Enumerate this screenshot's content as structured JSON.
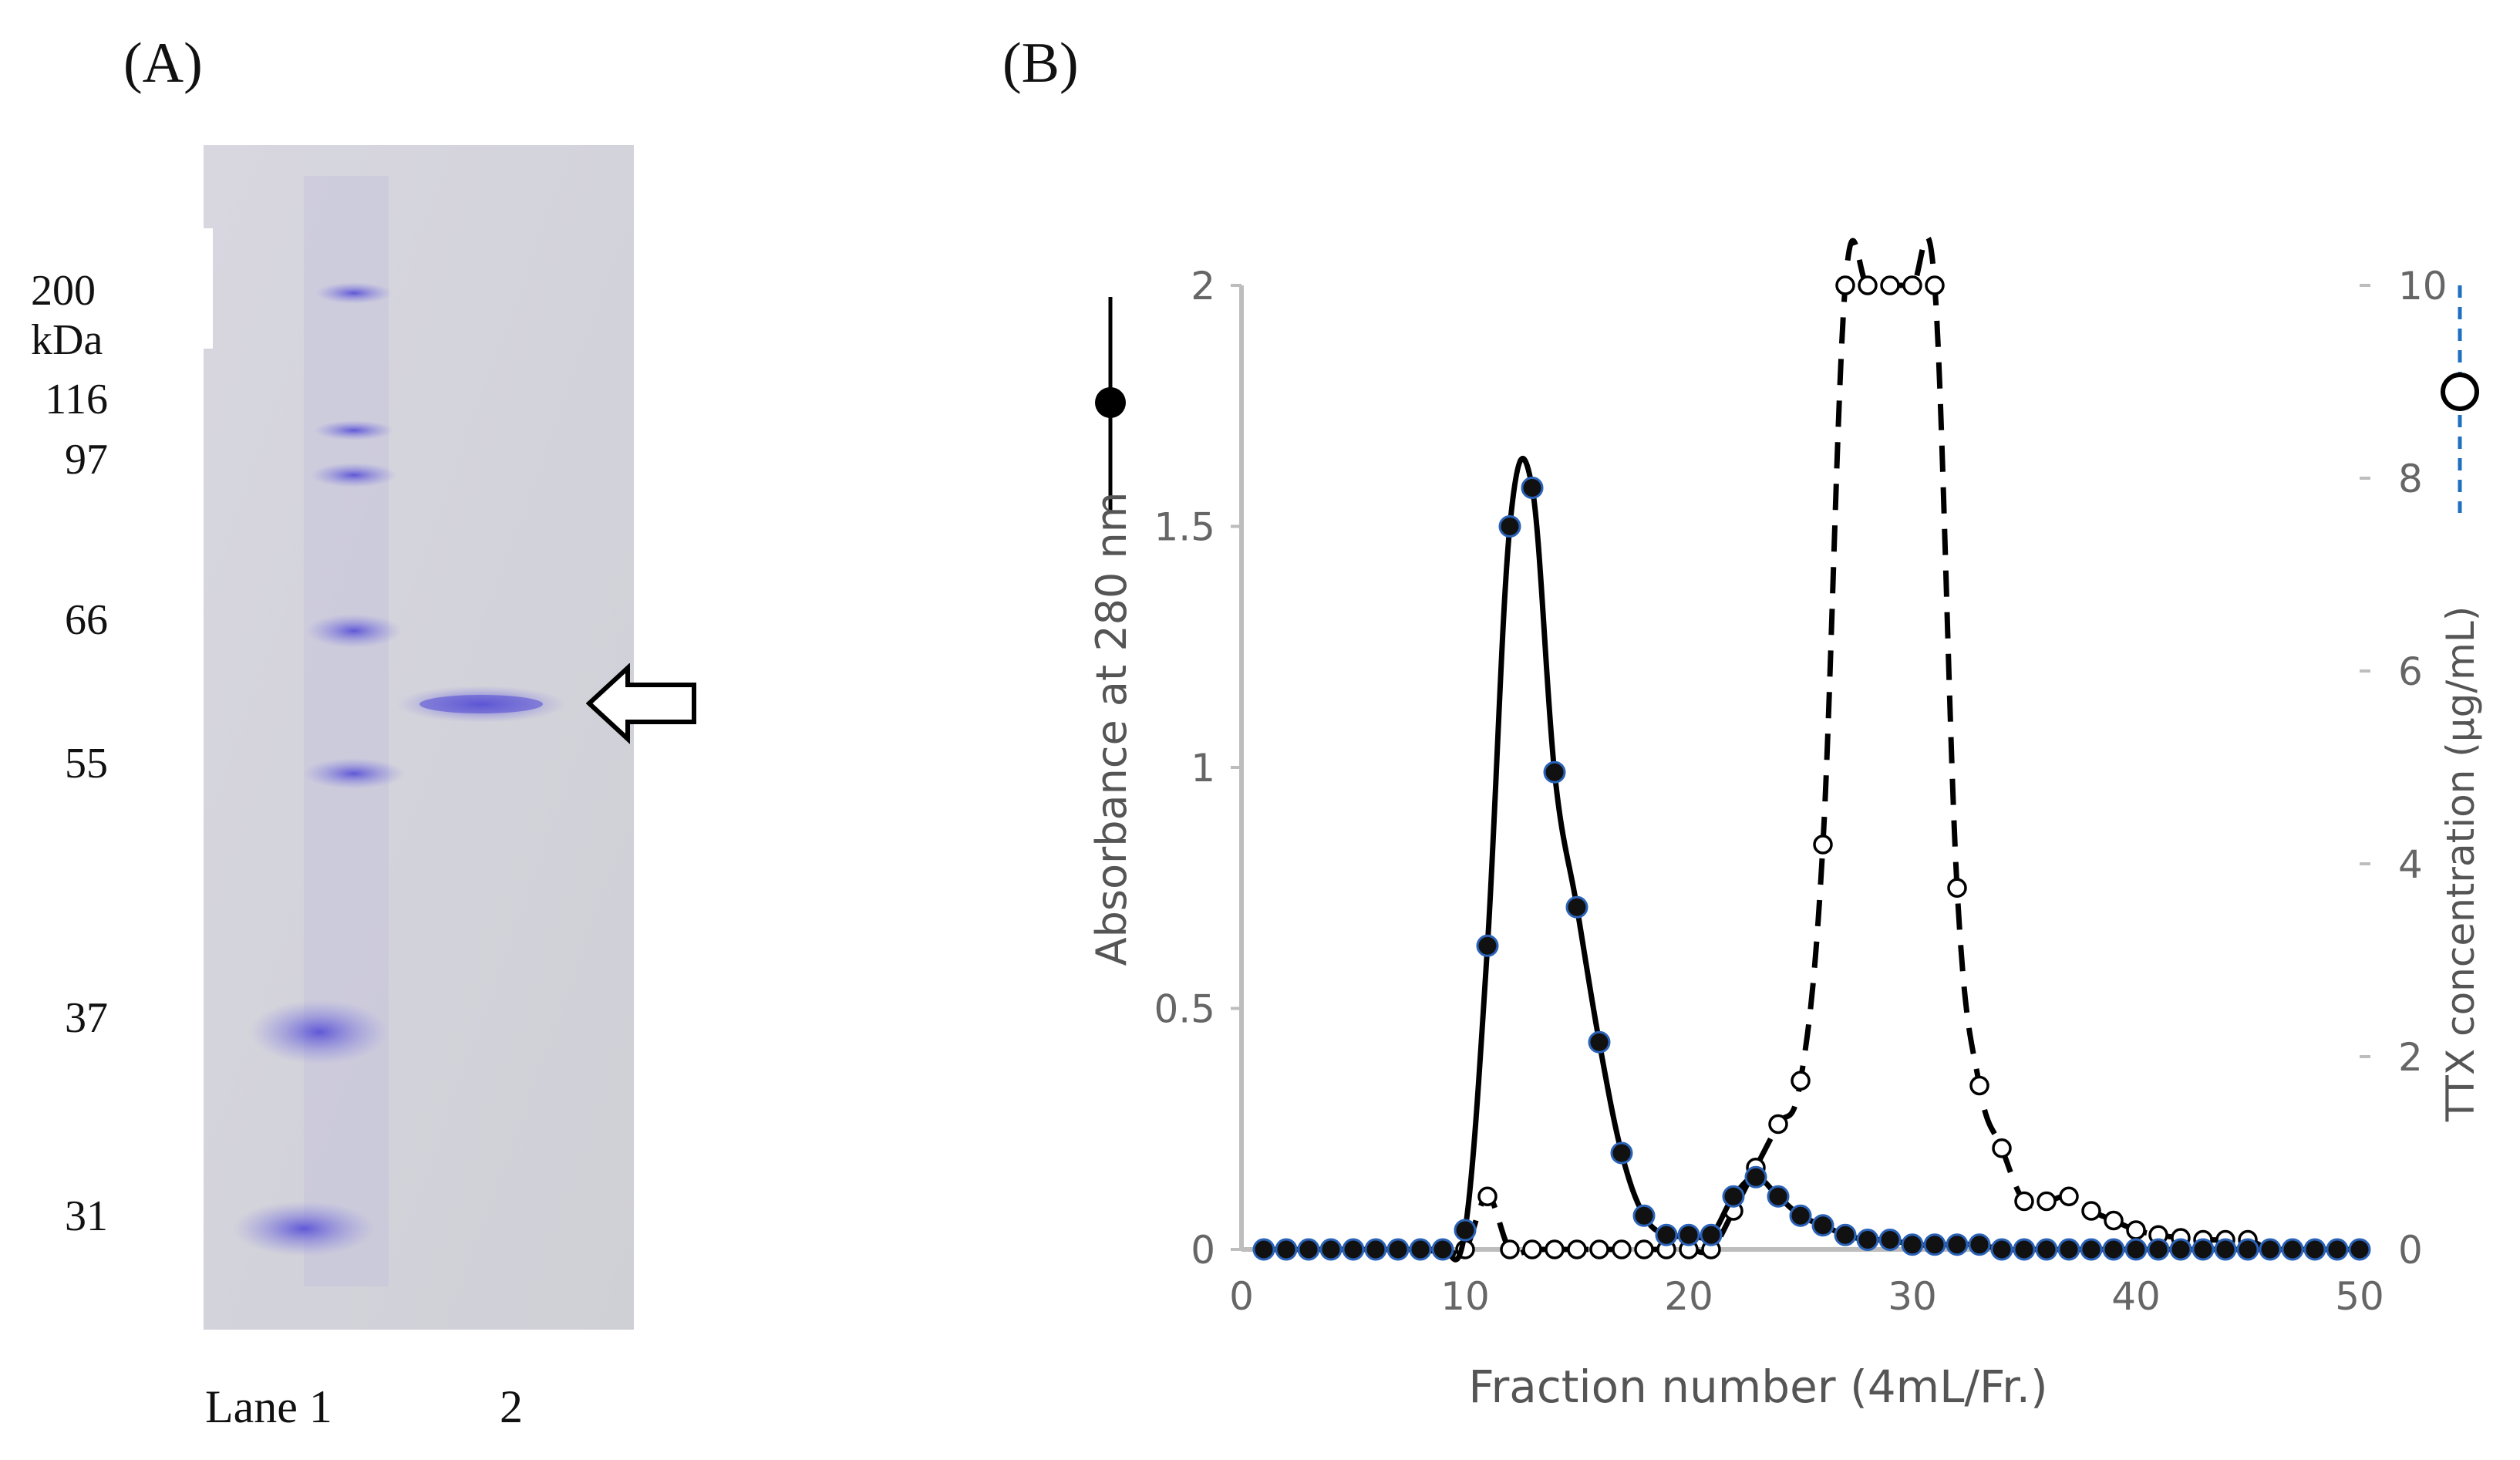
{
  "panels": {
    "a_label": "(A)",
    "b_label": "(B)"
  },
  "gel": {
    "mw_markers": [
      {
        "label": "200 kDa",
        "kda": 200
      },
      {
        "label": "116",
        "kda": 116
      },
      {
        "label": "97",
        "kda": 97
      },
      {
        "label": "66",
        "kda": 66
      },
      {
        "label": "55",
        "kda": 55
      },
      {
        "label": "37",
        "kda": 37
      },
      {
        "label": "31",
        "kda": 31
      }
    ],
    "lane_labels": [
      "Lane 1",
      "2"
    ],
    "sample_band_position": "between 66 and 55 kDa markers (arrow)",
    "colors": {
      "background": "#d3d2dd",
      "band": "#6a62d8"
    }
  },
  "chart_data": {
    "type": "line",
    "xlabel": "Fraction number (4mL/Fr.)",
    "ylabel": "Absorbance at 280 nm",
    "y2label": "TTX concentration (μg/mL)",
    "xlim": [
      0,
      50
    ],
    "ylim": [
      0,
      2
    ],
    "y2lim": [
      0,
      10
    ],
    "x_ticks": [
      0,
      10,
      20,
      30,
      40,
      50
    ],
    "y_ticks": [
      0,
      0.5,
      1,
      1.5,
      2
    ],
    "y2_ticks": [
      0,
      2,
      4,
      6,
      8,
      10
    ],
    "legend": {
      "absorbance": {
        "marker": "filled circle",
        "line": "solid",
        "color": "#000000"
      },
      "ttx": {
        "marker": "open circle",
        "line": "dashed",
        "color": "#1f6fc1"
      }
    },
    "series": [
      {
        "axis": "left",
        "style": "solid-filled",
        "x": [
          1,
          2,
          3,
          4,
          5,
          6,
          7,
          8,
          9,
          10,
          11,
          12,
          13,
          14,
          15,
          16,
          17,
          18,
          19,
          20,
          21,
          22,
          23,
          24,
          25,
          26,
          27,
          28,
          29,
          30,
          31,
          32,
          33,
          34,
          35,
          36,
          37,
          38,
          39,
          40,
          41,
          42,
          43,
          44,
          45,
          46,
          47,
          48,
          49,
          50
        ],
        "values": [
          0,
          0,
          0,
          0,
          0,
          0,
          0,
          0,
          0,
          0.04,
          0.63,
          1.5,
          1.58,
          0.99,
          0.71,
          0.43,
          0.2,
          0.07,
          0.03,
          0.03,
          0.03,
          0.11,
          0.15,
          0.11,
          0.07,
          0.05,
          0.03,
          0.02,
          0.02,
          0.01,
          0.01,
          0.01,
          0.01,
          0,
          0,
          0,
          0,
          0,
          0,
          0,
          0,
          0,
          0,
          0,
          0,
          0,
          0,
          0,
          0,
          0
        ]
      },
      {
        "axis": "right",
        "style": "dashed-open",
        "x": [
          1,
          2,
          3,
          4,
          5,
          6,
          7,
          8,
          9,
          10,
          11,
          12,
          13,
          14,
          15,
          16,
          17,
          18,
          19,
          20,
          21,
          22,
          23,
          24,
          25,
          26,
          27,
          28,
          29,
          30,
          31,
          32,
          33,
          34,
          35,
          36,
          37,
          38,
          39,
          40,
          41,
          42,
          43,
          44,
          45,
          46,
          47,
          48,
          49,
          50
        ],
        "values": [
          0,
          0,
          0,
          0,
          0,
          0,
          0,
          0,
          0,
          0,
          0.55,
          0,
          0,
          0,
          0,
          0,
          0,
          0,
          0,
          0,
          0,
          0.4,
          0.85,
          1.3,
          1.75,
          4.2,
          10,
          10,
          10,
          10,
          10,
          3.75,
          1.7,
          1.05,
          0.5,
          0.5,
          0.55,
          0.4,
          0.3,
          0.2,
          0.15,
          0.12,
          0.1,
          0.1,
          0.1,
          0,
          0,
          0,
          0,
          0
        ]
      }
    ]
  }
}
